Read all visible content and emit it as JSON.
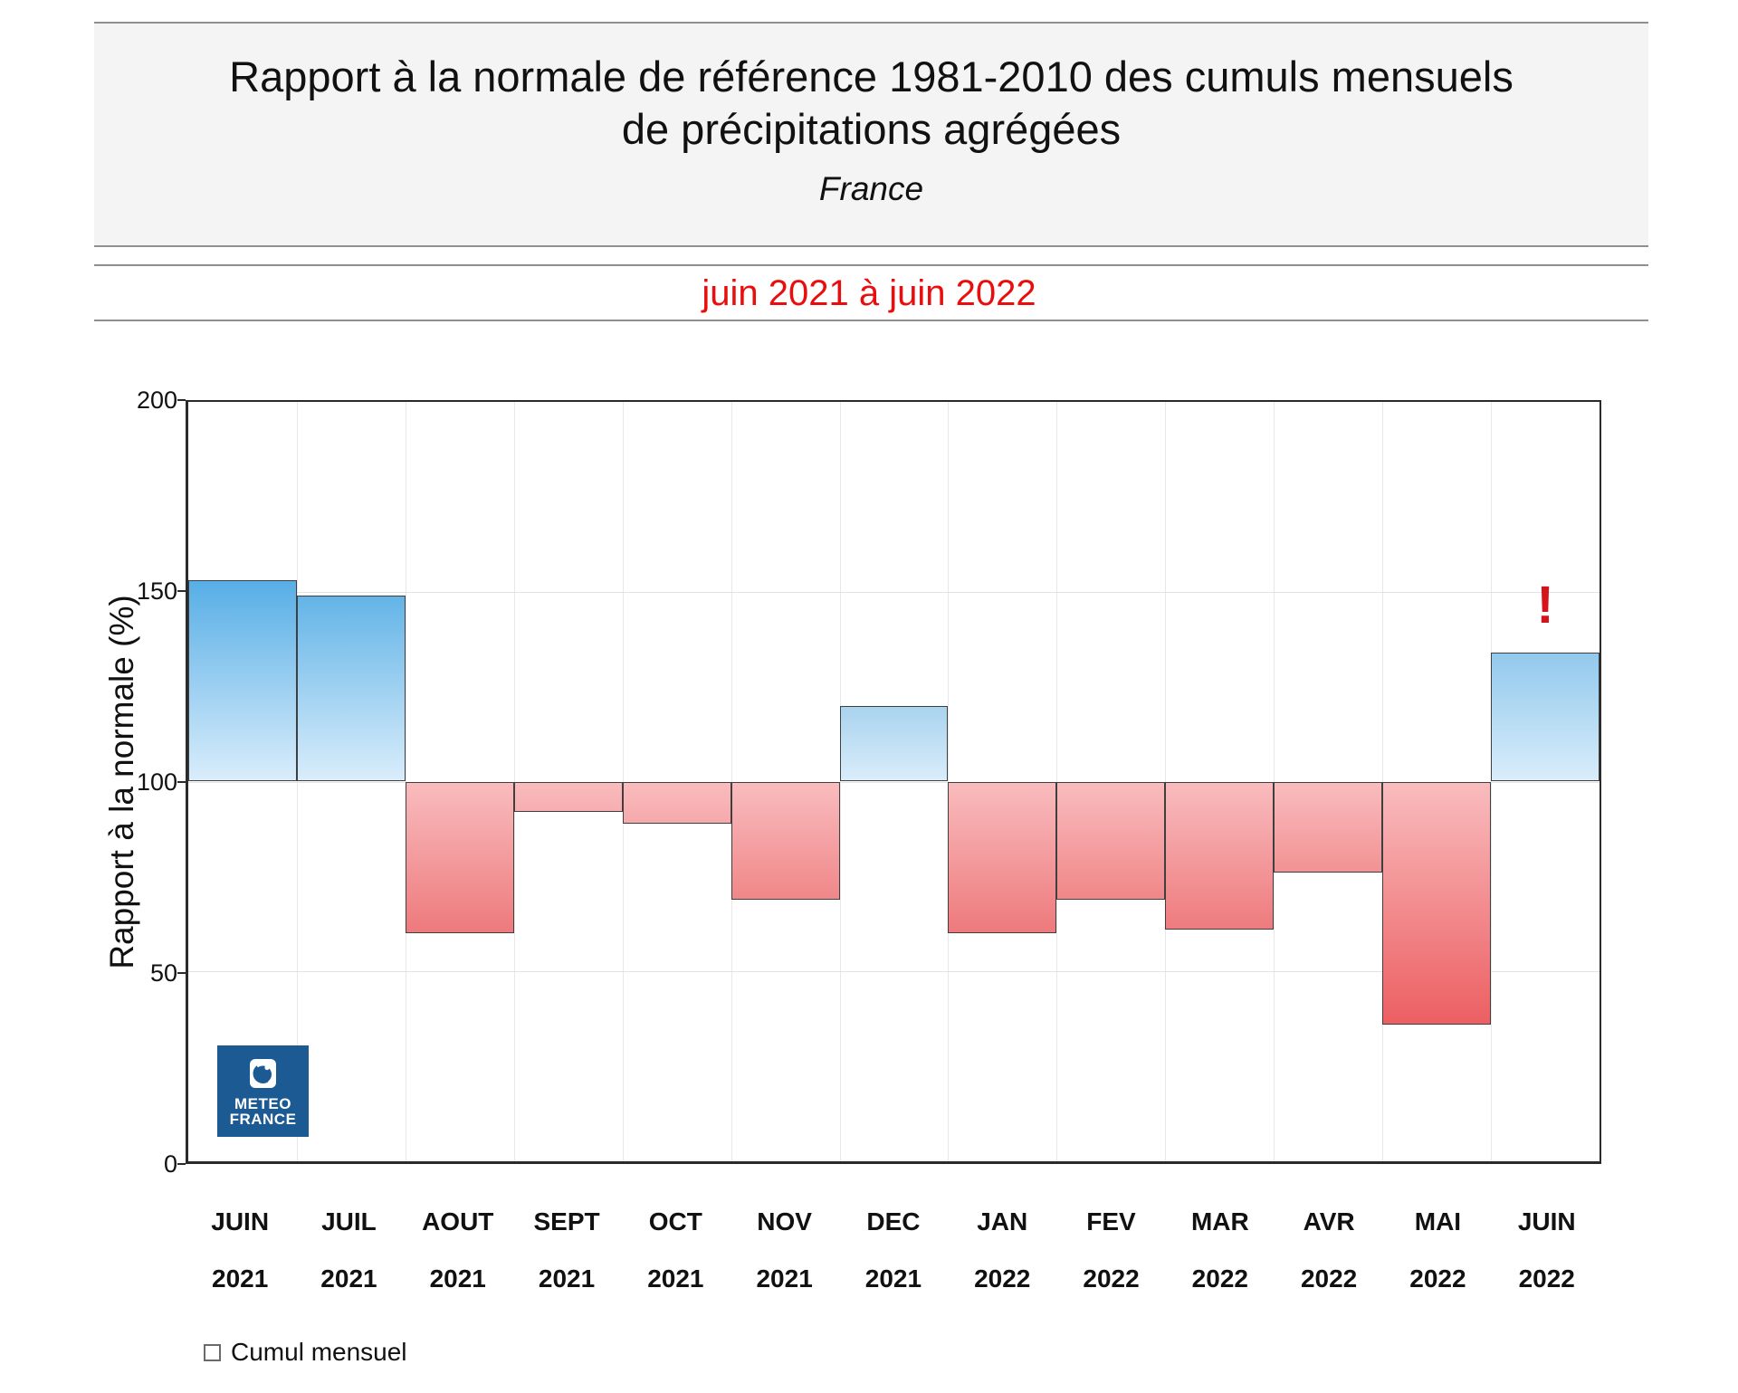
{
  "header": {
    "title_line1": "Rapport à la normale de référence 1981-2010 des cumuls mensuels",
    "title_line2": "de précipitations agrégées",
    "region": "France",
    "period": "juin 2021 à juin 2022"
  },
  "chart_data": {
    "type": "bar",
    "title": "Rapport à la normale de référence 1981-2010 des cumuls mensuels de précipitations agrégées",
    "subtitle": "France",
    "period": "juin 2021 à juin 2022",
    "ylabel": "Rapport à la normale (%)",
    "ylim": [
      0,
      200
    ],
    "yticks": [
      0,
      50,
      100,
      150,
      200
    ],
    "reference_line": 100,
    "grid": true,
    "categories": [
      {
        "month": "JUIN",
        "year": "2021"
      },
      {
        "month": "JUIL",
        "year": "2021"
      },
      {
        "month": "AOUT",
        "year": "2021"
      },
      {
        "month": "SEPT",
        "year": "2021"
      },
      {
        "month": "OCT",
        "year": "2021"
      },
      {
        "month": "NOV",
        "year": "2021"
      },
      {
        "month": "DEC",
        "year": "2021"
      },
      {
        "month": "JAN",
        "year": "2022"
      },
      {
        "month": "FEV",
        "year": "2022"
      },
      {
        "month": "MAR",
        "year": "2022"
      },
      {
        "month": "AVR",
        "year": "2022"
      },
      {
        "month": "MAI",
        "year": "2022"
      },
      {
        "month": "JUIN",
        "year": "2022"
      }
    ],
    "values": [
      153,
      149,
      60,
      92,
      89,
      69,
      120,
      60,
      69,
      61,
      76,
      36,
      134
    ],
    "annotation": {
      "text": "!",
      "category_index": 12
    },
    "legend": {
      "checkbox_label": "Cumul mensuel",
      "checked": false
    }
  },
  "logo": {
    "line1": "METEO",
    "line2": "FRANCE"
  },
  "colors": {
    "period_red": "#e90d0d",
    "annotation_red": "#d6121a",
    "title_box_bg": "#f4f4f4",
    "rule_gray": "#8f8f8f",
    "plot_border": "#2a2a2a",
    "vgrid": "#e8e8e8",
    "hgrid": "#e3e3e3",
    "bar_border": "#3f3f3f",
    "logo_bg": "#1c5a94",
    "blue_gradient_stops": [
      [
        100,
        "#d9edfb"
      ],
      [
        120,
        "#a9d3ee"
      ],
      [
        134,
        "#92c9ec"
      ],
      [
        153,
        "#57aee6"
      ],
      [
        200,
        "#1e90d6"
      ]
    ],
    "red_gradient_stops": [
      [
        0,
        "#e73c40"
      ],
      [
        36,
        "#ec5f62"
      ],
      [
        60,
        "#ee7a7c"
      ],
      [
        70,
        "#f0888a"
      ],
      [
        100,
        "#f9bcbe"
      ]
    ]
  }
}
